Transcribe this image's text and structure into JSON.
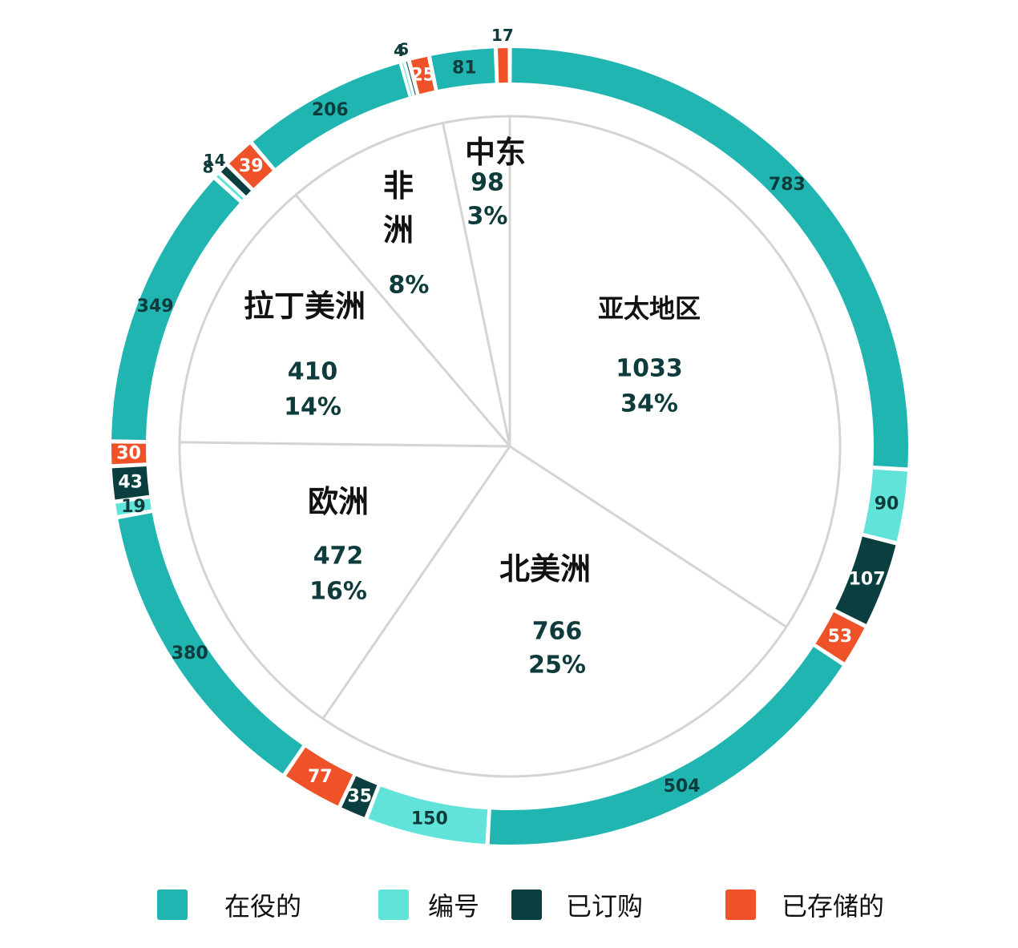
{
  "chart_data": {
    "type": "pie",
    "title": "",
    "colors": {
      "active": "#21b5b1",
      "numbered": "#62e3da",
      "ordered": "#0b3f3f",
      "stored": "#ef5228",
      "inner_fill": "#ffffff",
      "inner_stroke": "#d4d4d4",
      "value_text": "#0e3b3b",
      "region_text": "#111111"
    },
    "inner_pie": [
      {
        "name": "亚太地区",
        "value": "1033",
        "percent": "34%"
      },
      {
        "name": "北美洲",
        "value": "766",
        "percent": "25%"
      },
      {
        "name": "欧洲",
        "value": "472",
        "percent": "16%"
      },
      {
        "name": "拉丁美洲",
        "value": "410",
        "percent": "14%"
      },
      {
        "name": "非洲",
        "value": "",
        "percent": "8%"
      },
      {
        "name": "中东",
        "value": "98",
        "percent": "3%"
      }
    ],
    "outer_ring": [
      {
        "region": "亚太地区",
        "status": "active",
        "value": 783
      },
      {
        "region": "亚太地区",
        "status": "numbered",
        "value": 90
      },
      {
        "region": "亚太地区",
        "status": "ordered",
        "value": 107
      },
      {
        "region": "亚太地区",
        "status": "stored",
        "value": 53
      },
      {
        "region": "北美洲",
        "status": "active",
        "value": 504
      },
      {
        "region": "北美洲",
        "status": "numbered",
        "value": 150
      },
      {
        "region": "北美洲",
        "status": "ordered",
        "value": 35
      },
      {
        "region": "北美洲",
        "status": "stored",
        "value": 77
      },
      {
        "region": "欧洲",
        "status": "active",
        "value": 380
      },
      {
        "region": "欧洲",
        "status": "numbered",
        "value": 19
      },
      {
        "region": "欧洲",
        "status": "ordered",
        "value": 43
      },
      {
        "region": "欧洲",
        "status": "stored",
        "value": 30
      },
      {
        "region": "拉丁美洲",
        "status": "active",
        "value": 349
      },
      {
        "region": "拉丁美洲",
        "status": "numbered",
        "value": 8
      },
      {
        "region": "拉丁美洲",
        "status": "ordered",
        "value": 14
      },
      {
        "region": "拉丁美洲",
        "status": "stored",
        "value": 39
      },
      {
        "region": "非洲",
        "status": "active",
        "value": 206
      },
      {
        "region": "非洲",
        "status": "numbered",
        "value": 4
      },
      {
        "region": "非洲",
        "status": "ordered",
        "value": 6
      },
      {
        "region": "非洲",
        "status": "stored",
        "value": 25
      },
      {
        "region": "中东",
        "status": "active",
        "value": 81
      },
      {
        "region": "中东",
        "status": "stored",
        "value": 17
      }
    ],
    "legend": [
      {
        "key": "active",
        "label": "在役的"
      },
      {
        "key": "numbered",
        "label": "编号"
      },
      {
        "key": "ordered",
        "label": "已订购"
      },
      {
        "key": "stored",
        "label": "已存储的"
      }
    ],
    "legend_placement": "bottom"
  }
}
